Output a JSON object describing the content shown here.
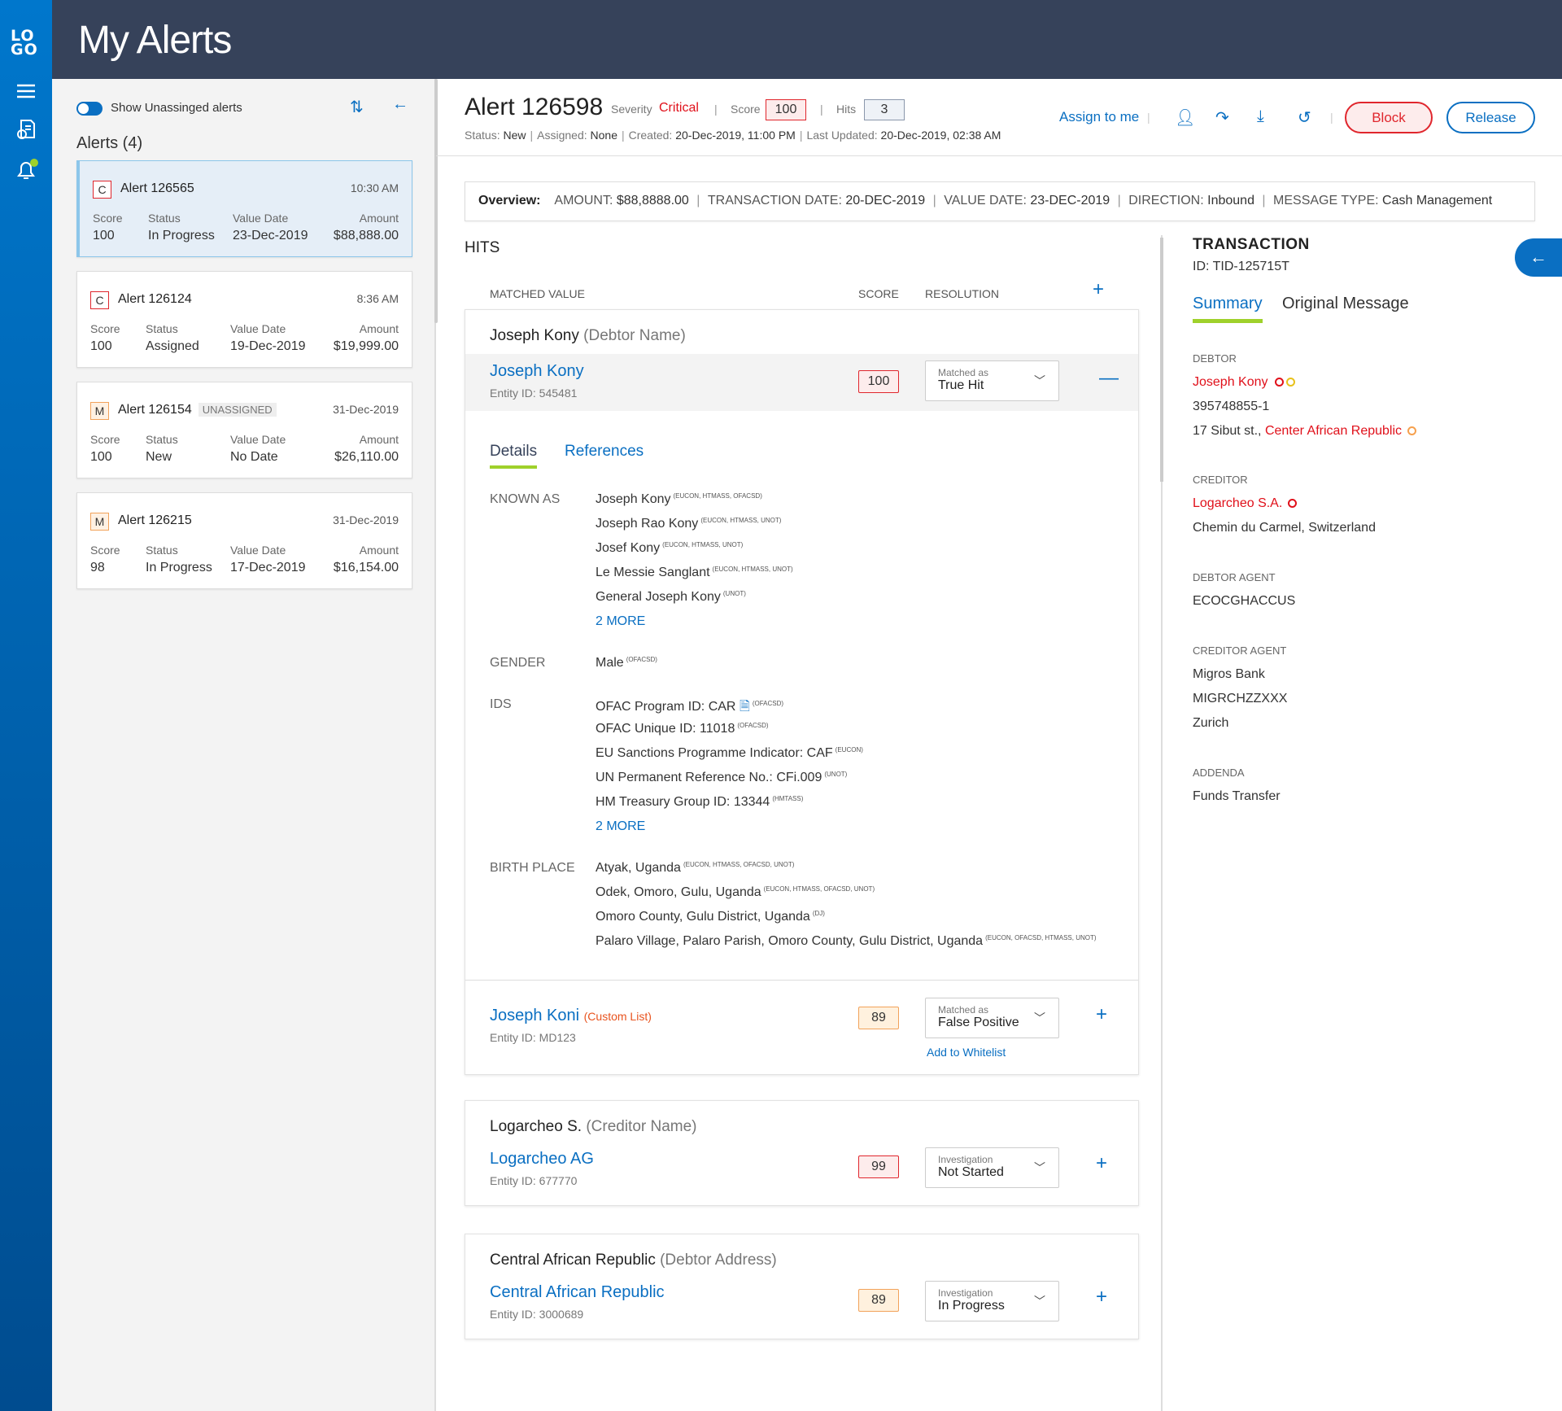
{
  "nav": {
    "logo": "LOGO",
    "icons": [
      "menu-icon",
      "reports-icon",
      "notifications-icon"
    ]
  },
  "header": {
    "title": "My Alerts"
  },
  "list": {
    "toggle_label": "Show Unassinged alerts",
    "title": "Alerts (4)",
    "field_labels": {
      "score": "Score",
      "status": "Status",
      "value_date": "Value Date",
      "amount": "Amount"
    },
    "alerts": [
      {
        "severity": "C",
        "title": "Alert 126565",
        "time": "10:30 AM",
        "score": "100",
        "status": "In Progress",
        "value_date": "23-Dec-2019",
        "amount": "$88,888.00",
        "tag": ""
      },
      {
        "severity": "C",
        "title": "Alert 126124",
        "time": "8:36 AM",
        "score": "100",
        "status": "Assigned",
        "value_date": "19-Dec-2019",
        "amount": "$19,999.00",
        "tag": ""
      },
      {
        "severity": "M",
        "title": "Alert 126154",
        "time": "31-Dec-2019",
        "score": "100",
        "status": "New",
        "value_date": "No Date",
        "amount": "$26,110.00",
        "tag": "UNASSIGNED"
      },
      {
        "severity": "M",
        "title": "Alert 126215",
        "time": "31-Dec-2019",
        "score": "98",
        "status": "In Progress",
        "value_date": "17-Dec-2019",
        "amount": "$16,154.00",
        "tag": ""
      }
    ]
  },
  "alert": {
    "title": "Alert 126598",
    "severity_label": "Severity",
    "severity": "Critical",
    "score_label": "Score",
    "score": "100",
    "hits_label": "Hits",
    "hits": "3",
    "status_label": "Status:",
    "status": "New",
    "assigned_label": "Assigned:",
    "assigned": "None",
    "created_label": "Created:",
    "created": "20-Dec-2019, 11:00 PM",
    "updated_label": "Last Updated:",
    "updated": "20-Dec-2019, 02:38 AM",
    "assign_to_me": "Assign to me",
    "block": "Block",
    "release": "Release"
  },
  "overview": {
    "label": "Overview:",
    "amount_label": "AMOUNT:",
    "amount": "$88,8888.00",
    "tdate_label": "TRANSACTION DATE:",
    "tdate": "20-DEC-2019",
    "vdate_label": "VALUE DATE:",
    "vdate": "23-DEC-2019",
    "direction_label": "DIRECTION:",
    "direction": "Inbound",
    "mtype_label": "MESSAGE TYPE:",
    "mtype": "Cash Management"
  },
  "hits": {
    "title": "HITS",
    "col_matched": "MATCHED VALUE",
    "col_score": "SCORE",
    "col_resolution": "RESOLUTION",
    "groups": [
      {
        "name": "Joseph Kony",
        "type": "(Debtor Name)",
        "items": [
          {
            "name": "Joseph Kony",
            "entity": "Entity ID: 545481",
            "score": "100",
            "res_label": "Matched as",
            "res_value": "True Hit"
          },
          {
            "name": "Joseph Koni",
            "list": "(Custom List)",
            "entity": "Entity ID: MD123",
            "score": "89",
            "res_label": "Matched as",
            "res_value": "False Positive",
            "action": "Add to Whitelist"
          }
        ]
      },
      {
        "name": "Logarcheo S.",
        "type": "(Creditor Name)",
        "items": [
          {
            "name": "Logarcheo AG",
            "entity": "Entity ID: 677770",
            "score": "99",
            "res_label": "Investigation",
            "res_value": "Not Started"
          }
        ]
      },
      {
        "name": "Central African Republic",
        "type": "(Debtor Address)",
        "items": [
          {
            "name": "Central African Republic",
            "entity": "Entity ID: 3000689",
            "score": "89",
            "res_label": "Investigation",
            "res_value": "In Progress"
          }
        ]
      }
    ],
    "tabs": [
      "Details",
      "References"
    ],
    "details": {
      "known_as_label": "KNOWN AS",
      "known_as": [
        [
          "Joseph Kony",
          "(EUCON, HTMASS, OFACSD)"
        ],
        [
          "Joseph Rao Kony",
          "(EUCON, HTMASS, UNOT)"
        ],
        [
          "Josef Kony",
          "(EUCON, HTMASS, UNOT)"
        ],
        [
          "Le Messie Sanglant",
          "(EUCON, HTMASS, UNOT)"
        ],
        [
          "General Joseph Kony",
          "(UNOT)"
        ]
      ],
      "known_more": "2 MORE",
      "gender_label": "GENDER",
      "gender": [
        "Male",
        "(OFACSD)"
      ],
      "ids_label": "IDS",
      "ids": [
        [
          "OFAC Program ID: CAR",
          "(OFACSD)"
        ],
        [
          "OFAC Unique ID: 11018",
          "(OFACSD)"
        ],
        [
          "EU Sanctions Programme Indicator: CAF",
          "(EUCON)"
        ],
        [
          "UN Permanent Reference No.: CFi.009",
          "(UNOT)"
        ],
        [
          "HM Treasury Group ID: 13344",
          "(HMTASS)"
        ]
      ],
      "ids_more": "2 MORE",
      "birth_label": "BIRTH PLACE",
      "birth": [
        [
          "Atyak, Uganda",
          "(EUCON, HTMASS, OFACSD, UNOT)"
        ],
        [
          "Odek, Omoro, Gulu, Uganda",
          "(EUCON, HTMASS, OFACSD, UNOT)"
        ],
        [
          "Omoro County, Gulu District, Uganda",
          "(DJ)"
        ],
        [
          "Palaro Village, Palaro Parish, Omoro County, Gulu District, Uganda",
          "(EUCON, OFACSD, HTMASS, UNOT)"
        ]
      ]
    }
  },
  "transaction": {
    "title": "TRANSACTION",
    "id": "ID: TID-125715T",
    "tabs": [
      "Summary",
      "Original Message"
    ],
    "debtor_label": "DEBTOR",
    "debtor_name": "Joseph Kony",
    "debtor_id": "395748855-1",
    "debtor_addr": "17 Sibut st.,",
    "debtor_country": "Center African Republic",
    "creditor_label": "CREDITOR",
    "creditor_name": "Logarcheo S.A.",
    "creditor_addr": "Chemin du Carmel, Switzerland",
    "debtor_agent_label": "DEBTOR AGENT",
    "debtor_agent": "ECOCGHACCUS",
    "creditor_agent_label": "CREDITOR AGENT",
    "creditor_agent": [
      "Migros Bank",
      "MIGRCHZZXXX",
      "Zurich"
    ],
    "addenda_label": "ADDENDA",
    "addenda": "Funds Transfer"
  },
  "colors": {
    "brand": "#0a6fc2",
    "header": "#36425a",
    "critical": "#e0262d",
    "accent": "#9fd12b"
  }
}
